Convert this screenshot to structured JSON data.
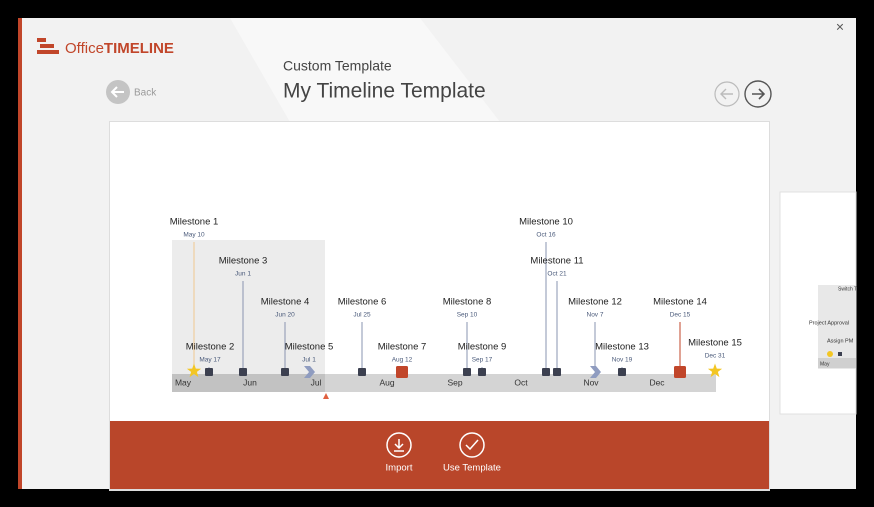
{
  "header": {
    "logo_office": "Office",
    "logo_timeline": "TIMELINE",
    "back": "Back",
    "subtitle": "Custom Template",
    "title": "My Timeline Template"
  },
  "timeline": {
    "months": [
      "May",
      "Jun",
      "Jul",
      "Aug",
      "Sep",
      "Oct",
      "Nov",
      "Dec"
    ],
    "milestones": [
      {
        "label": "Milestone 1",
        "date": "May 10"
      },
      {
        "label": "Milestone 2",
        "date": "May 17"
      },
      {
        "label": "Milestone 3",
        "date": "Jun 1"
      },
      {
        "label": "Milestone 4",
        "date": "Jun 20"
      },
      {
        "label": "Milestone 5",
        "date": "Jul 1"
      },
      {
        "label": "Milestone 6",
        "date": "Jul 25"
      },
      {
        "label": "Milestone 7",
        "date": "Aug 12"
      },
      {
        "label": "Milestone 8",
        "date": "Sep 10"
      },
      {
        "label": "Milestone 9",
        "date": "Sep 17"
      },
      {
        "label": "Milestone 10",
        "date": "Oct 16"
      },
      {
        "label": "Milestone 11",
        "date": "Oct 21"
      },
      {
        "label": "Milestone 12",
        "date": "Nov 7"
      },
      {
        "label": "Milestone 13",
        "date": "Nov 19"
      },
      {
        "label": "Milestone 14",
        "date": "Dec 15"
      },
      {
        "label": "Milestone 15",
        "date": "Dec 31"
      }
    ]
  },
  "actions": {
    "import": "Import",
    "use_template": "Use Template"
  },
  "thumbnail": {
    "top": "Switch T",
    "project_approval": "Project Approval",
    "assign_pm": "Assign PM",
    "month": "May"
  }
}
